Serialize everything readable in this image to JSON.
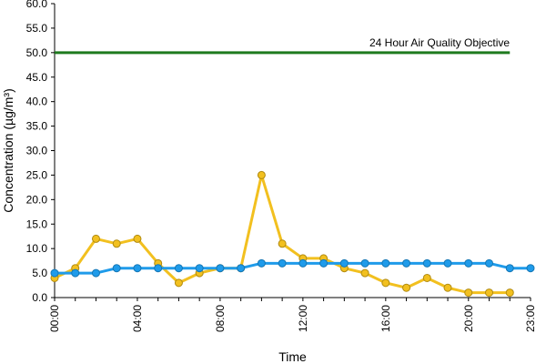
{
  "chart_data": {
    "type": "line",
    "xlabel": "Time",
    "ylabel": "Concentration (µg/m³)",
    "ylim": [
      0,
      60
    ],
    "y_ticks": [
      "0.0",
      "5.0",
      "10.0",
      "15.0",
      "20.0",
      "25.0",
      "30.0",
      "35.0",
      "40.0",
      "45.0",
      "50.0",
      "55.0",
      "60.0"
    ],
    "y_tick_values": [
      0,
      5,
      10,
      15,
      20,
      25,
      30,
      35,
      40,
      45,
      50,
      55,
      60
    ],
    "x_hours": [
      0,
      1,
      2,
      3,
      4,
      5,
      6,
      7,
      8,
      9,
      10,
      11,
      12,
      13,
      14,
      15,
      16,
      17,
      18,
      19,
      20,
      21,
      22,
      23
    ],
    "x_ticks": [
      "00:00",
      "04:00",
      "08:00",
      "12:00",
      "16:00",
      "20:00",
      "23:00"
    ],
    "x_tick_hours": [
      0,
      4,
      8,
      12,
      16,
      20,
      23
    ],
    "grid": false,
    "series": [
      {
        "color": "#f2c01f",
        "marker": "circle",
        "values": [
          4,
          6,
          12,
          11,
          12,
          7,
          3,
          5,
          6,
          6,
          25,
          11,
          8,
          8,
          6,
          5,
          3,
          2,
          4,
          2,
          1,
          1,
          1,
          null
        ]
      },
      {
        "color": "#1f9bea",
        "marker": "circle",
        "values": [
          5,
          5,
          5,
          6,
          6,
          6,
          6,
          6,
          6,
          6,
          7,
          7,
          7,
          7,
          7,
          7,
          7,
          7,
          7,
          7,
          7,
          7,
          6,
          6
        ]
      }
    ],
    "reference_line": {
      "label": "24 Hour Air Quality Objective",
      "value": 50,
      "x_start": 0,
      "x_end": 22,
      "color": "#1e7a1e"
    }
  }
}
